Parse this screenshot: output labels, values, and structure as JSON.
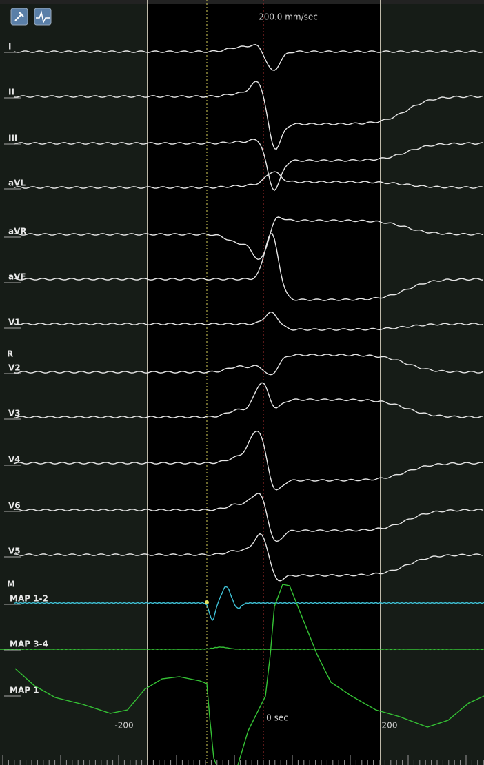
{
  "header": {
    "speed": "200.0 mm/sec"
  },
  "leads": [
    "I",
    "II",
    "III",
    "aVL",
    "aVR",
    "aVF",
    "V1",
    "V2",
    "V3",
    "V4",
    "V6",
    "V5"
  ],
  "groups": [
    "R",
    "M"
  ],
  "maps": [
    "MAP 1-2",
    "MAP 3-4",
    "MAP 1"
  ],
  "time_axis": [
    "-200",
    "0 sec",
    "200"
  ]
}
